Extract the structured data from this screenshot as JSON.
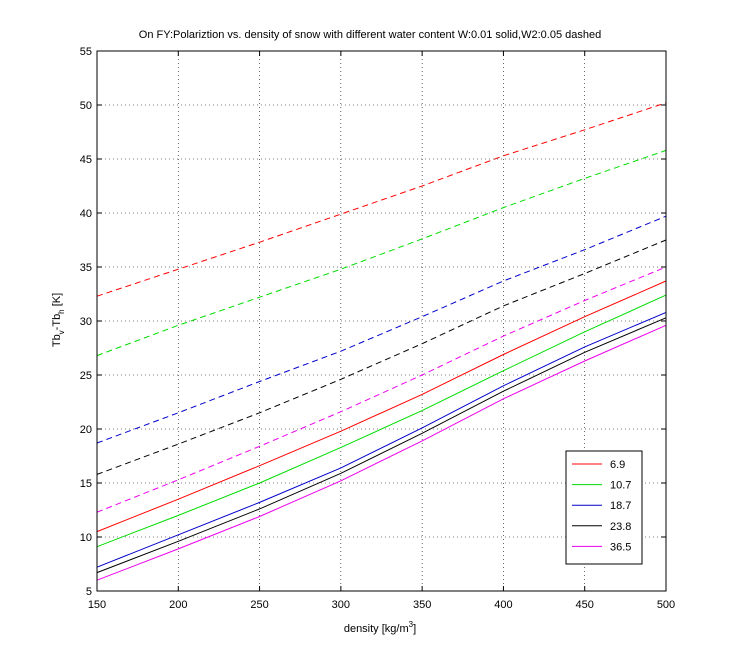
{
  "chart_data": {
    "type": "line",
    "title": "On FY:Polariztion vs. density of snow with different water content W:0.01 solid,W2:0.05 dashed",
    "xlabel_main": "density [kg/m",
    "xlabel_sup": "3",
    "xlabel_end": "]",
    "ylabel": {
      "p1": "Tb",
      "s1": "v",
      "p2": "-Tb",
      "s2": "h",
      "p3": " [K]"
    },
    "xlim": [
      150,
      500
    ],
    "ylim": [
      5,
      55
    ],
    "xticks": [
      150,
      200,
      250,
      300,
      350,
      400,
      450,
      500
    ],
    "yticks": [
      5,
      10,
      15,
      20,
      25,
      30,
      35,
      40,
      45,
      50,
      55
    ],
    "grid": true,
    "legend_position": "bottom-right",
    "x": [
      150,
      200,
      250,
      300,
      350,
      400,
      450,
      500
    ],
    "series": [
      {
        "name": "6.9",
        "color": "#ff0000",
        "style": "solid",
        "values": [
          10.5,
          13.5,
          16.6,
          19.8,
          23.2,
          26.9,
          30.4,
          33.7
        ]
      },
      {
        "name": "10.7",
        "color": "#00dd00",
        "style": "solid",
        "values": [
          9.1,
          12.0,
          15.0,
          18.3,
          21.7,
          25.4,
          29.0,
          32.4
        ]
      },
      {
        "name": "18.7",
        "color": "#0000cc",
        "style": "solid",
        "values": [
          7.2,
          10.2,
          13.2,
          16.4,
          20.1,
          24.0,
          27.6,
          30.8
        ]
      },
      {
        "name": "23.8",
        "color": "#000000",
        "style": "solid",
        "values": [
          6.7,
          9.6,
          12.6,
          15.9,
          19.6,
          23.5,
          27.1,
          30.3
        ]
      },
      {
        "name": "36.5",
        "color": "#ee00ee",
        "style": "solid",
        "values": [
          6.0,
          8.9,
          11.9,
          15.2,
          18.9,
          22.8,
          26.3,
          29.6
        ]
      },
      {
        "color": "#ff0000",
        "style": "dashed",
        "values": [
          32.3,
          34.8,
          37.3,
          39.9,
          42.5,
          45.3,
          47.7,
          50.2
        ]
      },
      {
        "color": "#00dd00",
        "style": "dashed",
        "values": [
          26.8,
          29.6,
          32.2,
          34.8,
          37.6,
          40.5,
          43.2,
          45.8
        ]
      },
      {
        "color": "#0000cc",
        "style": "dashed",
        "values": [
          18.7,
          21.5,
          24.4,
          27.2,
          30.4,
          33.7,
          36.6,
          39.7
        ]
      },
      {
        "color": "#000000",
        "style": "dashed",
        "values": [
          15.8,
          18.6,
          21.5,
          24.6,
          27.9,
          31.4,
          34.4,
          37.5
        ]
      },
      {
        "color": "#ee00ee",
        "style": "dashed",
        "values": [
          12.3,
          15.3,
          18.4,
          21.6,
          25.0,
          28.6,
          31.9,
          35.0
        ]
      }
    ]
  }
}
